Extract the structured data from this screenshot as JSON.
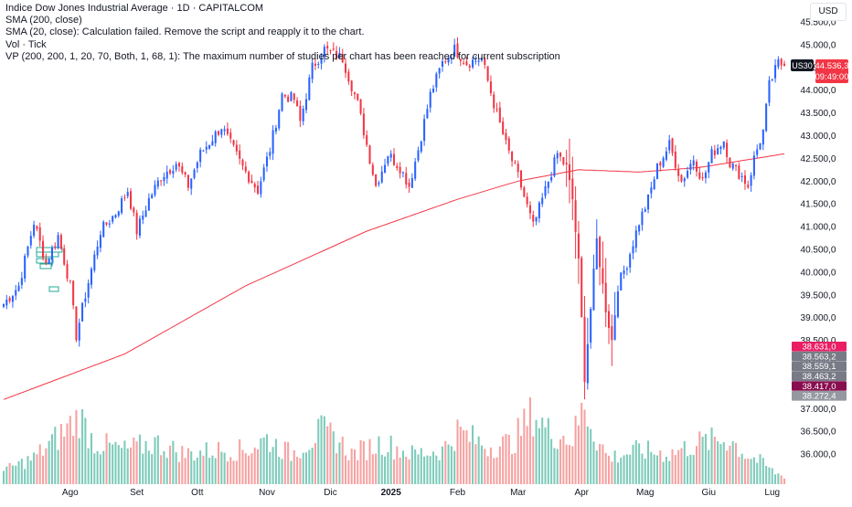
{
  "legend": {
    "title": "Indice Dow Jones Industrial Average · 1D · CAPITALCOM",
    "sma200": "SMA (200, close)",
    "sma20": "SMA (20, close): Calculation failed. Remove the script and reapply it to the chart.",
    "vol": "Vol · Tick",
    "vp": "VP (200, 200, 1, 20, 70, Both, 1, 68, 1): The maximum number of studies per chart has been reached for current subscription"
  },
  "currency": "USD",
  "symbol_tag": "US30",
  "last_price": "44.536,3",
  "countdown": "09:49:00",
  "price_labels": [
    {
      "text": "38.631,0",
      "value": 38631.0,
      "color": "#e91e63"
    },
    {
      "text": "38.563,2",
      "value": 38563.2,
      "color": "#787b86"
    },
    {
      "text": "38.559,1",
      "value": 38559.1,
      "color": "#787b86"
    },
    {
      "text": "38.463,2",
      "value": 38463.2,
      "color": "#787b86"
    },
    {
      "text": "38.417,0",
      "value": 38417.0,
      "color": "#880e4f"
    },
    {
      "text": "38.272,4",
      "value": 38272.4,
      "color": "#9598a1"
    }
  ],
  "colors": {
    "up": "#2962ff",
    "down": "#f23645",
    "vol_up": "#7dcbba",
    "vol_down": "#f7a1a1",
    "sma200": "#f23645",
    "text": "#131722"
  },
  "chart_data": {
    "type": "candlestick",
    "ylim": [
      35700,
      45700
    ],
    "yticks": [
      "36.000,0",
      "36.500,0",
      "37.000,0",
      "37.500,0",
      "38.000,0",
      "38.500,0",
      "39.000,0",
      "39.500,0",
      "40.000,0",
      "40.500,0",
      "41.000,0",
      "41.500,0",
      "42.000,0",
      "42.500,0",
      "43.000,0",
      "43.500,0",
      "44.000,0",
      "44.500,0",
      "45.000,0",
      "45.500,0"
    ],
    "ytick_values": [
      36000,
      36500,
      37000,
      37500,
      38000,
      38500,
      39000,
      39500,
      40000,
      40500,
      41000,
      41500,
      42000,
      42500,
      43000,
      43500,
      44000,
      44500,
      45000,
      45500
    ],
    "xticks": [
      {
        "label": "Ago",
        "index": 22
      },
      {
        "label": "Set",
        "index": 44
      },
      {
        "label": "Ott",
        "index": 64
      },
      {
        "label": "Nov",
        "index": 87
      },
      {
        "label": "Dic",
        "index": 108
      },
      {
        "label": "2025",
        "index": 128
      },
      {
        "label": "Feb",
        "index": 150
      },
      {
        "label": "Mar",
        "index": 170
      },
      {
        "label": "Apr",
        "index": 191
      },
      {
        "label": "Mag",
        "index": 212
      },
      {
        "label": "Giu",
        "index": 233
      },
      {
        "label": "Lug",
        "index": 254
      }
    ],
    "anchors": [
      [
        0,
        39300
      ],
      [
        5,
        39700
      ],
      [
        10,
        41100
      ],
      [
        14,
        40200
      ],
      [
        18,
        40800
      ],
      [
        22,
        39700
      ],
      [
        24,
        38600
      ],
      [
        27,
        39500
      ],
      [
        32,
        40900
      ],
      [
        37,
        41300
      ],
      [
        41,
        41800
      ],
      [
        44,
        40900
      ],
      [
        48,
        41600
      ],
      [
        52,
        42100
      ],
      [
        57,
        42400
      ],
      [
        61,
        41900
      ],
      [
        65,
        42600
      ],
      [
        72,
        43200
      ],
      [
        79,
        42300
      ],
      [
        84,
        41800
      ],
      [
        88,
        42700
      ],
      [
        92,
        43900
      ],
      [
        96,
        43800
      ],
      [
        98,
        43300
      ],
      [
        102,
        44500
      ],
      [
        106,
        44900
      ],
      [
        112,
        44700
      ],
      [
        117,
        43700
      ],
      [
        121,
        42500
      ],
      [
        123,
        41900
      ],
      [
        127,
        42600
      ],
      [
        131,
        42300
      ],
      [
        134,
        41900
      ],
      [
        137,
        42700
      ],
      [
        141,
        43900
      ],
      [
        145,
        44600
      ],
      [
        149,
        44900
      ],
      [
        153,
        44600
      ],
      [
        158,
        44700
      ],
      [
        162,
        43700
      ],
      [
        166,
        42800
      ],
      [
        170,
        42100
      ],
      [
        175,
        41000
      ],
      [
        179,
        41800
      ],
      [
        183,
        42600
      ],
      [
        186,
        42300
      ],
      [
        188,
        41600
      ],
      [
        190,
        40200
      ],
      [
        192,
        37700
      ],
      [
        194,
        39200
      ],
      [
        196,
        40700
      ],
      [
        199,
        39200
      ],
      [
        201,
        38500
      ],
      [
        203,
        39700
      ],
      [
        206,
        40200
      ],
      [
        210,
        41100
      ],
      [
        213,
        41600
      ],
      [
        216,
        42300
      ],
      [
        220,
        42800
      ],
      [
        224,
        42000
      ],
      [
        228,
        42500
      ],
      [
        231,
        42000
      ],
      [
        234,
        42600
      ],
      [
        238,
        42900
      ],
      [
        240,
        42400
      ],
      [
        244,
        42100
      ],
      [
        246,
        41900
      ],
      [
        248,
        42500
      ],
      [
        251,
        43100
      ],
      [
        253,
        44100
      ],
      [
        256,
        44600
      ],
      [
        258,
        44536
      ]
    ],
    "volume_anchors": [
      [
        0,
        18
      ],
      [
        10,
        35
      ],
      [
        20,
        70
      ],
      [
        25,
        90
      ],
      [
        30,
        55
      ],
      [
        40,
        45
      ],
      [
        50,
        55
      ],
      [
        60,
        40
      ],
      [
        70,
        45
      ],
      [
        80,
        45
      ],
      [
        87,
        60
      ],
      [
        95,
        40
      ],
      [
        105,
        70
      ],
      [
        110,
        60
      ],
      [
        115,
        40
      ],
      [
        125,
        55
      ],
      [
        135,
        40
      ],
      [
        145,
        45
      ],
      [
        150,
        70
      ],
      [
        160,
        50
      ],
      [
        168,
        55
      ],
      [
        175,
        95
      ],
      [
        180,
        70
      ],
      [
        188,
        60
      ],
      [
        192,
        105
      ],
      [
        196,
        60
      ],
      [
        200,
        35
      ],
      [
        210,
        45
      ],
      [
        220,
        40
      ],
      [
        230,
        55
      ],
      [
        240,
        60
      ],
      [
        245,
        40
      ],
      [
        250,
        30
      ],
      [
        255,
        15
      ],
      [
        258,
        10
      ]
    ],
    "sma200_anchors": [
      [
        0,
        37200
      ],
      [
        40,
        38200
      ],
      [
        80,
        39700
      ],
      [
        120,
        40900
      ],
      [
        150,
        41600
      ],
      [
        170,
        42000
      ],
      [
        190,
        42250
      ],
      [
        210,
        42200
      ],
      [
        230,
        42300
      ],
      [
        258,
        42600
      ]
    ],
    "series": [
      {
        "name": "Indice Dow Jones Industrial Average",
        "role": "ohlc"
      },
      {
        "name": "SMA (200, close)",
        "role": "line"
      },
      {
        "name": "Vol",
        "role": "volume"
      }
    ],
    "xlabel": "",
    "ylabel": ""
  }
}
